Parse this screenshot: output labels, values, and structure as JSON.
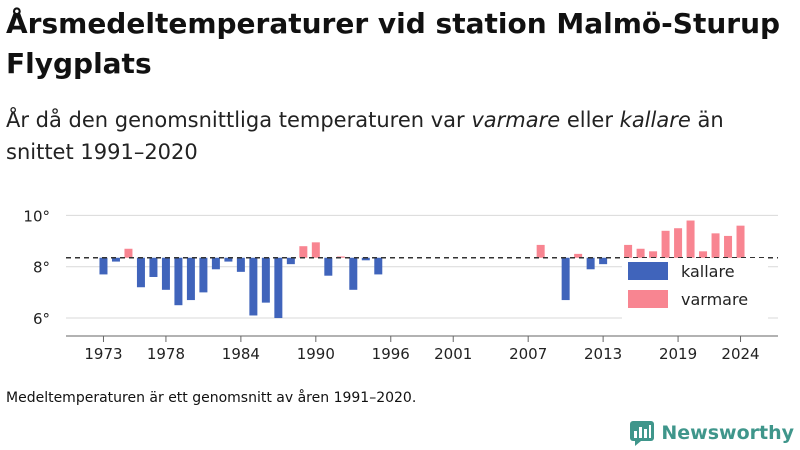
{
  "title": "Årsmedeltemperaturer vid station Malmö-Sturup Flygplats",
  "subtitle": {
    "part1": "År då den genomsnittliga temperaturen var ",
    "warm_word": "varmare",
    "part2": " eller ",
    "cold_word": "kallare",
    "part3": " än snittet 1991–2020"
  },
  "footnote": "Medeltemperaturen är ett genomsnitt av åren 1991–2020.",
  "brand": "Newsworthy",
  "colors": {
    "cold": "#4064bb",
    "warm": "#f88591",
    "brand": "#3f968b"
  },
  "chart_data": {
    "type": "bar",
    "baseline": 8.35,
    "ylim": [
      5.3,
      10.6
    ],
    "yticks": [
      6,
      8,
      10
    ],
    "ytick_labels": [
      "6°",
      "8°",
      "10°"
    ],
    "xticks": [
      1973,
      1978,
      1984,
      1990,
      1996,
      2001,
      2007,
      2013,
      2019,
      2024
    ],
    "xlim": [
      1970,
      2027
    ],
    "legend": [
      {
        "key": "cold",
        "label": "kallare"
      },
      {
        "key": "warm",
        "label": "varmare"
      }
    ],
    "legend_position": "bottom-right",
    "years": [
      1973,
      1974,
      1975,
      1976,
      1977,
      1978,
      1979,
      1980,
      1981,
      1982,
      1983,
      1984,
      1985,
      1986,
      1987,
      1988,
      1989,
      1990,
      1991,
      1992,
      1993,
      1994,
      1995,
      2008,
      2010,
      2011,
      2012,
      2013,
      2015,
      2016,
      2017,
      2018,
      2019,
      2020,
      2021,
      2022,
      2023,
      2024
    ],
    "values": [
      7.7,
      8.2,
      8.7,
      7.2,
      7.6,
      7.1,
      6.5,
      6.7,
      7.0,
      7.9,
      8.2,
      7.8,
      6.1,
      6.6,
      6.0,
      8.1,
      8.8,
      8.95,
      7.65,
      8.4,
      7.1,
      8.25,
      7.7,
      8.85,
      6.7,
      8.5,
      7.9,
      8.1,
      8.85,
      8.7,
      8.6,
      9.4,
      9.5,
      9.8,
      8.6,
      9.3,
      9.2,
      9.6
    ]
  }
}
